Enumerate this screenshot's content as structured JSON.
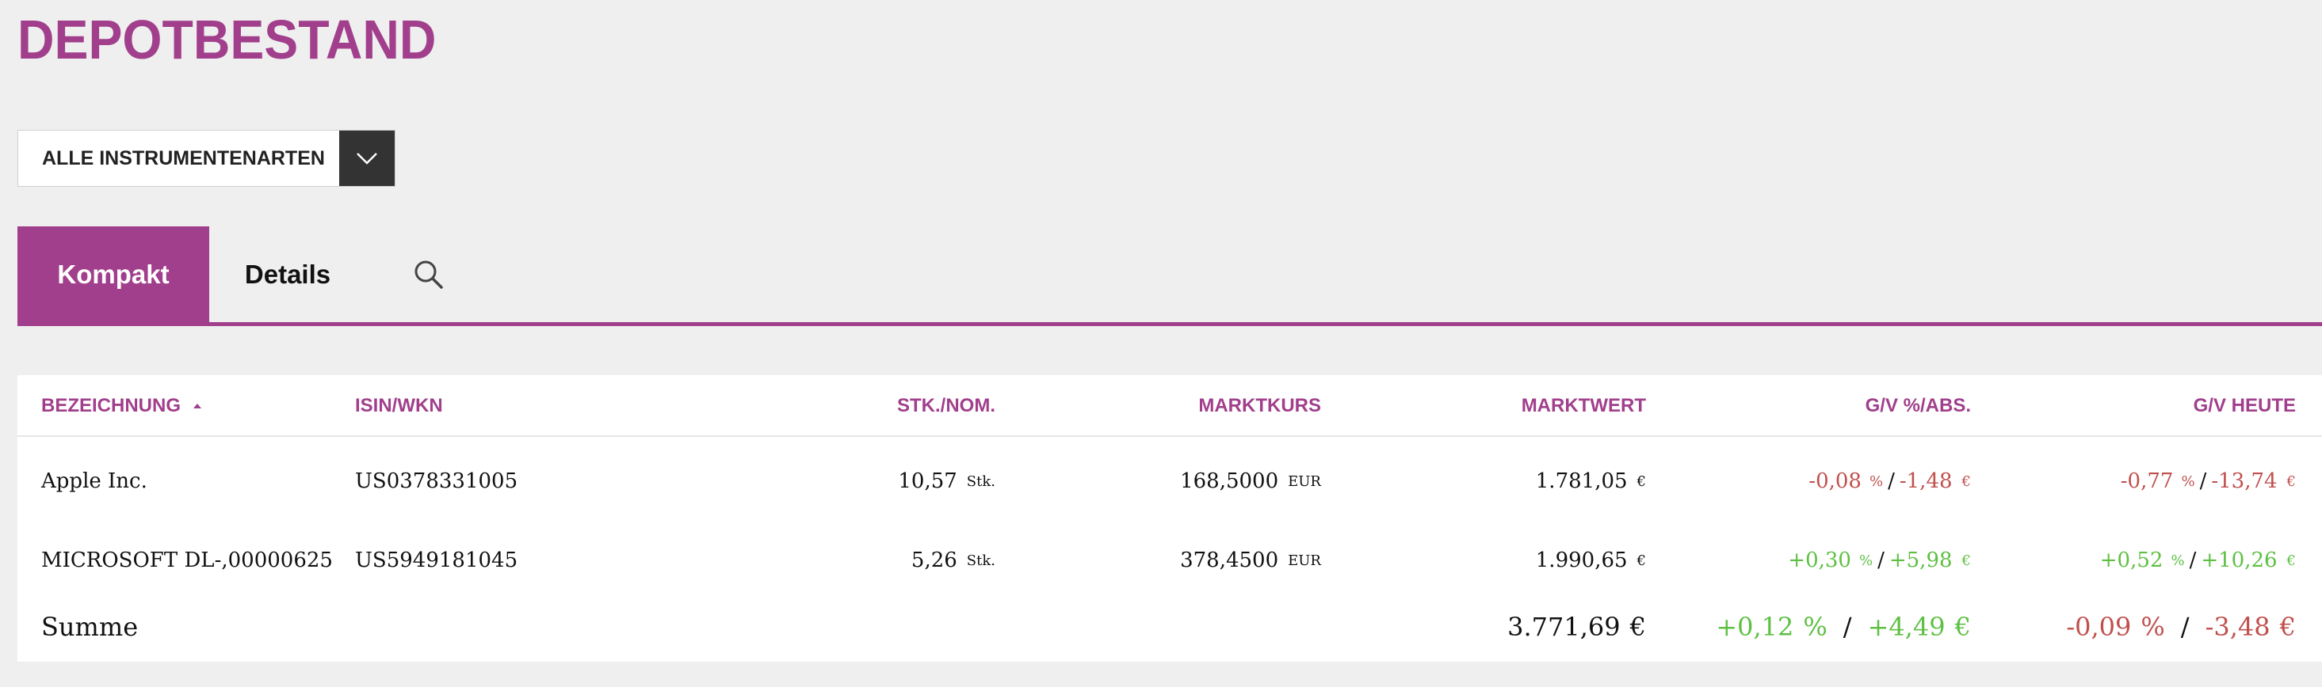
{
  "page": {
    "title": "DEPOTBESTAND"
  },
  "filter": {
    "selected": "ALLE INSTRUMENTENARTEN"
  },
  "tabs": [
    {
      "label": "Kompakt",
      "active": true
    },
    {
      "label": "Details",
      "active": false
    }
  ],
  "table": {
    "headers": {
      "name": "BEZEICHNUNG",
      "isin": "ISIN/WKN",
      "qty": "STK./NOM.",
      "price": "MARKTKURS",
      "value": "MARKTWERT",
      "gv": "G/V %/ABS.",
      "today": "G/V HEUTE"
    },
    "rows": [
      {
        "name": "Apple Inc.",
        "isin": "US0378331005",
        "qty": "10,57",
        "qty_unit": "Stk.",
        "price": "168,5000",
        "price_unit": "EUR",
        "value": "1.781,05",
        "value_unit": "€",
        "gv_pct": "-0,08",
        "gv_abs": "-1,48",
        "today_pct": "-0,77",
        "today_abs": "-13,74"
      },
      {
        "name": "MICROSOFT DL-,00000625",
        "isin": "US5949181045",
        "qty": "5,26",
        "qty_unit": "Stk.",
        "price": "378,4500",
        "price_unit": "EUR",
        "value": "1.990,65",
        "value_unit": "€",
        "gv_pct": "+0,30",
        "gv_abs": "+5,98",
        "today_pct": "+0,52",
        "today_abs": "+10,26"
      }
    ],
    "sum": {
      "label": "Summe",
      "value": "3.771,69",
      "gv_pct": "+0,12",
      "gv_abs": "+4,49",
      "today_pct": "-0,09",
      "today_abs": "-3,48"
    },
    "pct_symbol": "%",
    "currency_symbol": "€",
    "slash": "/"
  },
  "colors": {
    "accent": "#a13f8c",
    "negative": "#c0504d",
    "positive": "#5ec043",
    "select_arrow_bg": "#333333"
  },
  "icons": {
    "dropdown": "chevron-down-icon",
    "search": "search-icon",
    "sort": "sort-ascending-icon"
  }
}
